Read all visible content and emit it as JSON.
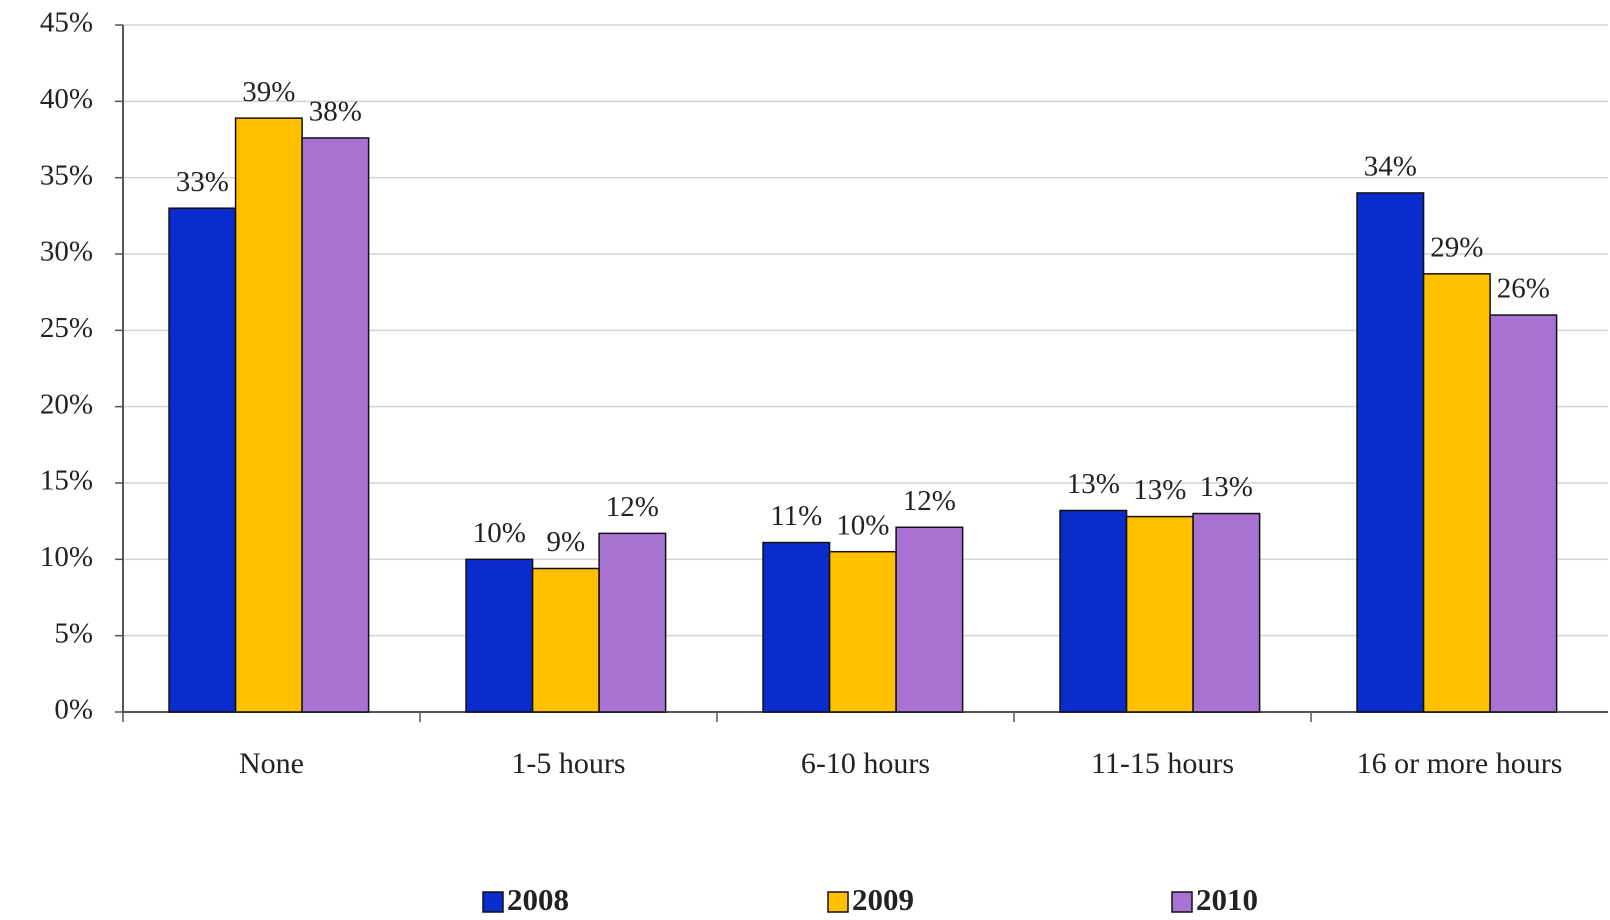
{
  "chart_data": {
    "type": "bar",
    "categories": [
      "None",
      "1-5 hours",
      "6-10 hours",
      "11-15 hours",
      "16 or more hours"
    ],
    "series": [
      {
        "name": "2008",
        "color": "#0a2ccc",
        "values": [
          33,
          10,
          11.1,
          13.2,
          34
        ],
        "value_labels": [
          "33%",
          "10%",
          "11%",
          "13%",
          "34%"
        ]
      },
      {
        "name": "2009",
        "color": "#ffc000",
        "values": [
          38.9,
          9.4,
          10.5,
          12.8,
          28.7
        ],
        "value_labels": [
          "39%",
          "9%",
          "10%",
          "13%",
          "29%"
        ]
      },
      {
        "name": "2010",
        "color": "#a772d2",
        "values": [
          37.6,
          11.7,
          12.1,
          13.0,
          26
        ],
        "value_labels": [
          "38%",
          "12%",
          "12%",
          "13%",
          "26%"
        ]
      }
    ],
    "ylim": [
      0,
      45
    ],
    "yticks": [
      {
        "value": 0,
        "label": "0%"
      },
      {
        "value": 5,
        "label": "5%"
      },
      {
        "value": 10,
        "label": "10%"
      },
      {
        "value": 15,
        "label": "15%"
      },
      {
        "value": 20,
        "label": "20%"
      },
      {
        "value": 25,
        "label": "25%"
      },
      {
        "value": 30,
        "label": "30%"
      },
      {
        "value": 35,
        "label": "35%"
      },
      {
        "value": 40,
        "label": "40%"
      },
      {
        "value": 45,
        "label": "45%"
      }
    ],
    "grid": true
  }
}
